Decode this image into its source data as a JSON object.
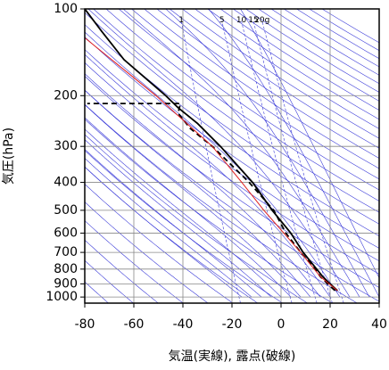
{
  "chart_data": {
    "type": "emagram",
    "xlabel": "気温(実線), 露点(破線)",
    "ylabel": "気圧(hPa)",
    "xlim": [
      -80,
      40
    ],
    "xticks": [
      -80,
      -60,
      -40,
      -20,
      0,
      20,
      40
    ],
    "ylim": [
      1050,
      100
    ],
    "yticks": [
      100,
      200,
      300,
      400,
      500,
      600,
      700,
      800,
      900,
      1000
    ],
    "ylog": true,
    "grid": true,
    "mixing_ratio": {
      "values": [
        1,
        5,
        10,
        15,
        20
      ],
      "labels": [
        "1",
        "5",
        "10",
        "15",
        "20g"
      ],
      "color": "#3a3ad8"
    },
    "series": [
      {
        "color": "#000000",
        "dash": false,
        "pressure": [
          950,
          900,
          850,
          800,
          700,
          600,
          500,
          400,
          300,
          250,
          220,
          200,
          150,
          120,
          100
        ],
        "values": [
          23,
          20,
          17,
          14.5,
          9,
          4,
          -3.6,
          -11.6,
          -24.7,
          -34,
          -42,
          -47,
          -64,
          -73,
          -80
        ]
      },
      {
        "color": "#000000",
        "dash": true,
        "pressure": [
          950,
          900,
          850,
          800,
          700,
          600,
          500,
          400,
          300,
          260,
          230,
          213,
          213
        ],
        "values": [
          22,
          19,
          16,
          14,
          8,
          2,
          -3,
          -13,
          -28,
          -37,
          -42,
          -41,
          -79
        ]
      },
      {
        "color": "#e02020",
        "dash": false,
        "pressure": [
          950,
          850,
          700,
          500,
          400,
          300,
          200,
          126
        ],
        "values": [
          23,
          16,
          8,
          -7,
          -16,
          -28,
          -51,
          -80
        ]
      }
    ]
  }
}
